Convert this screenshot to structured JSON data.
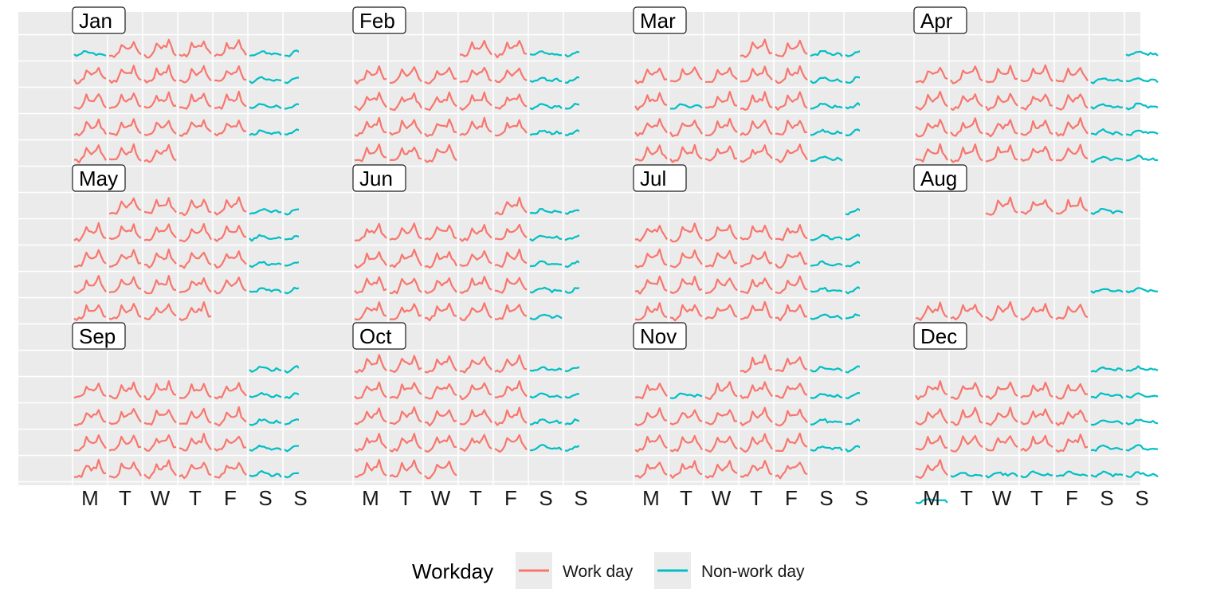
{
  "chart_data": {
    "type": "line",
    "subtype": "calendar-small-multiples",
    "title": "",
    "xlabel": "",
    "ylabel": "",
    "weekday_labels": [
      "M",
      "T",
      "W",
      "T",
      "F",
      "S",
      "S"
    ],
    "months": [
      "Jan",
      "Feb",
      "Mar",
      "Apr",
      "May",
      "Jun",
      "Jul",
      "Aug",
      "Sep",
      "Oct",
      "Nov",
      "Dec"
    ],
    "legend": {
      "title": "Workday",
      "position": "bottom",
      "entries": [
        {
          "key": "work",
          "label": "Work day",
          "color": "#F8766D"
        },
        {
          "key": "nonwork",
          "label": "Non-work day",
          "color": "#00BFC4"
        }
      ]
    },
    "colors": {
      "work": "#F8766D",
      "nonwork": "#00BFC4",
      "panel_bg": "#EBEBEB",
      "grid": "#FFFFFF"
    },
    "profiles": {
      "work_day_shape": [
        0.15,
        0.1,
        0.1,
        0.15,
        0.35,
        0.75,
        0.55,
        0.5,
        0.55,
        0.6,
        0.9,
        0.55,
        0.3,
        0.2
      ],
      "non_work_day_shape": [
        0.2,
        0.15,
        0.2,
        0.3,
        0.45,
        0.5,
        0.45,
        0.35,
        0.3,
        0.25,
        0.3,
        0.35,
        0.3,
        0.2
      ]
    },
    "calendar": [
      {
        "month": "Jan",
        "first_weekday": 0,
        "days": 31,
        "nonwork_days": [
          1
        ]
      },
      {
        "month": "Feb",
        "first_weekday": 3,
        "days": 28,
        "nonwork_days": []
      },
      {
        "month": "Mar",
        "first_weekday": 3,
        "days": 31,
        "nonwork_days": [
          13
        ]
      },
      {
        "month": "Apr",
        "first_weekday": 6,
        "days": 30,
        "nonwork_days": [
          7,
          30
        ]
      },
      {
        "month": "May",
        "first_weekday": 1,
        "days": 31,
        "nonwork_days": []
      },
      {
        "month": "Jun",
        "first_weekday": 4,
        "days": 30,
        "nonwork_days": [
          10
        ]
      },
      {
        "month": "Jul",
        "first_weekday": 6,
        "days": 31,
        "nonwork_days": []
      },
      {
        "month": "Aug",
        "first_weekday": 2,
        "days": 31,
        "hidden_days": [
          5,
          6,
          7,
          8,
          9,
          10,
          11,
          12,
          13,
          14,
          15,
          16,
          17,
          18,
          19,
          20,
          21,
          22,
          23,
          24
        ],
        "nonwork_days": []
      },
      {
        "month": "Sep",
        "first_weekday": 5,
        "days": 30,
        "nonwork_days": []
      },
      {
        "month": "Oct",
        "first_weekday": 0,
        "days": 31,
        "nonwork_days": []
      },
      {
        "month": "Nov",
        "first_weekday": 3,
        "days": 30,
        "nonwork_days": [
          6
        ]
      },
      {
        "month": "Dec",
        "first_weekday": 5,
        "days": 31,
        "nonwork_days": [
          25,
          26,
          27,
          28,
          29,
          30,
          31
        ]
      }
    ]
  }
}
